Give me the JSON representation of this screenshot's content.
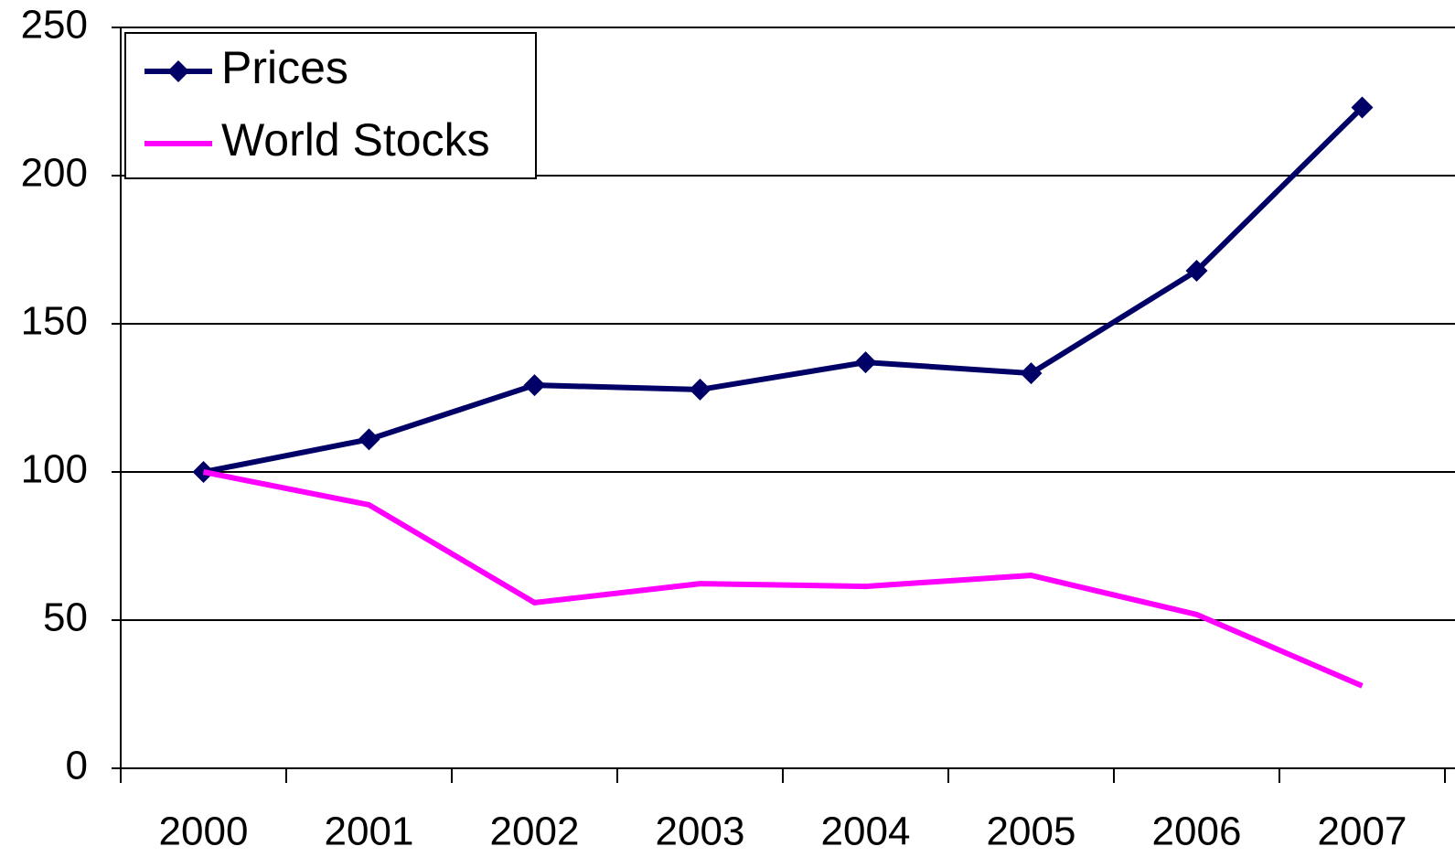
{
  "chart_data": {
    "type": "line",
    "categories": [
      "2000",
      "2001",
      "2002",
      "2003",
      "2004",
      "2005",
      "2006",
      "2007"
    ],
    "series": [
      {
        "name": "Prices",
        "color": "#000066",
        "marker": "diamond",
        "values": [
          100,
          111,
          129.3,
          127.8,
          137,
          133.3,
          167.9,
          223
        ]
      },
      {
        "name": "World Stocks",
        "color": "#ff00ff",
        "marker": "none",
        "values": [
          100,
          88.9,
          55.9,
          62.3,
          61.4,
          65.1,
          51.9,
          27.8
        ]
      }
    ],
    "ylim": [
      0,
      250
    ],
    "yticks": [
      0,
      50,
      100,
      150,
      200,
      250
    ],
    "grid": true,
    "legend": "upper left"
  }
}
